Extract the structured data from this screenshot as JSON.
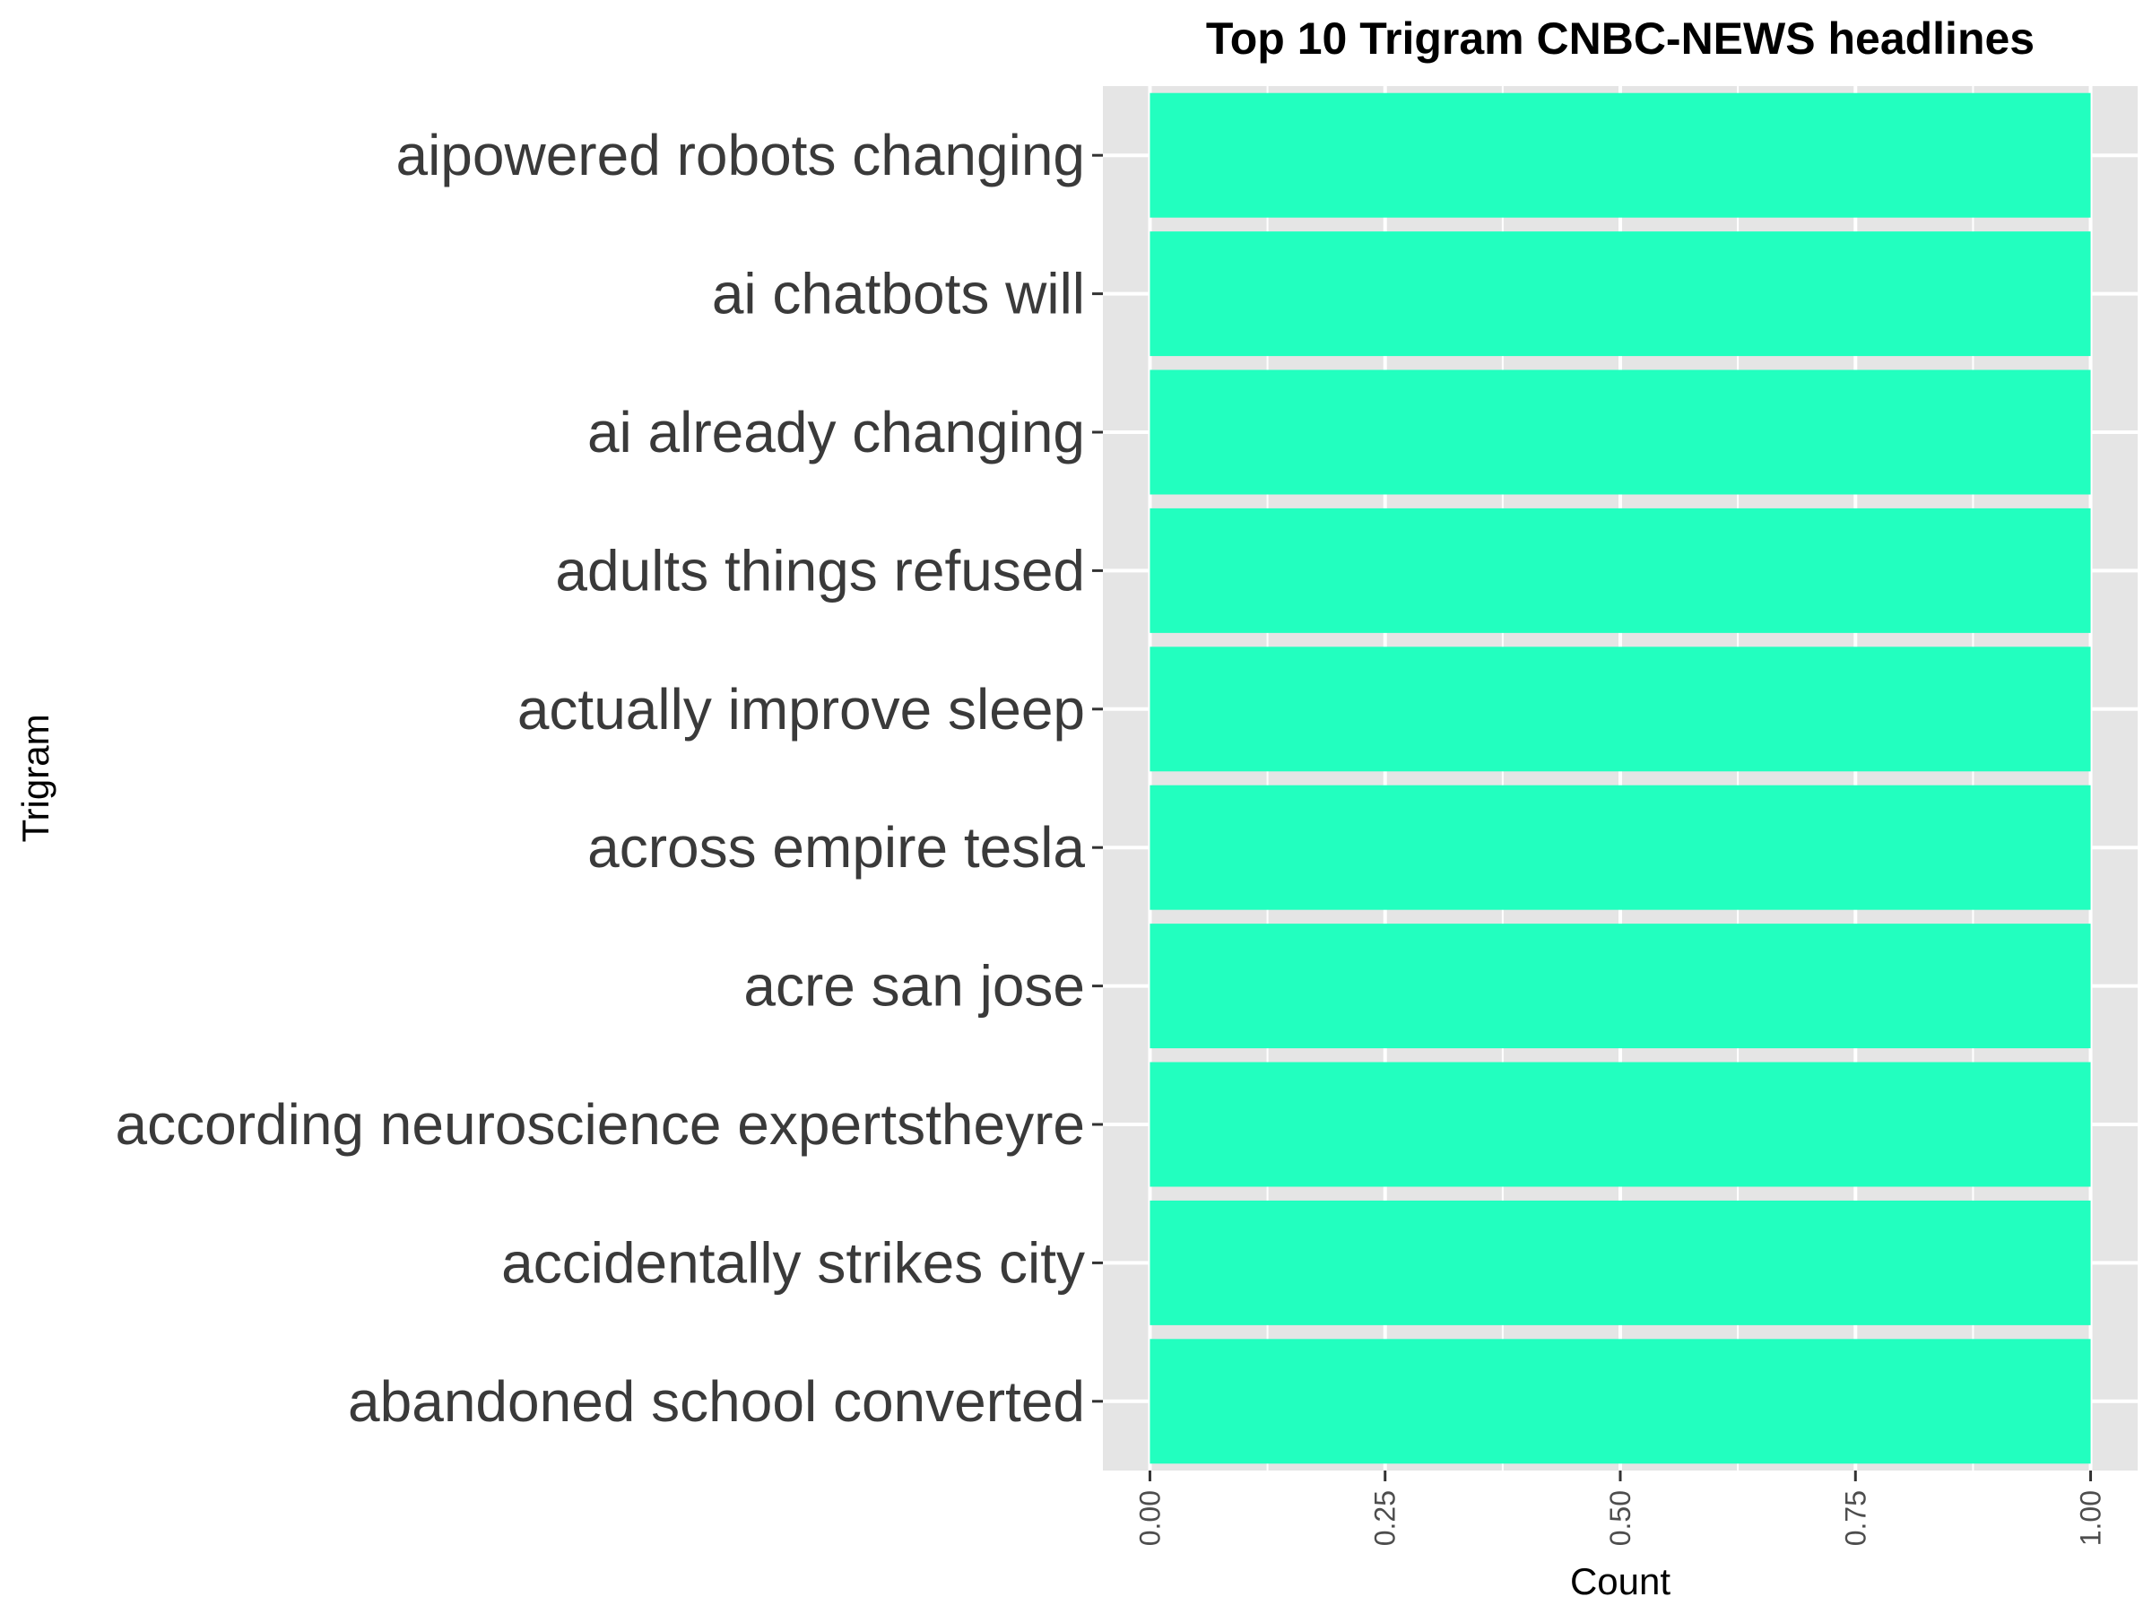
{
  "chart_data": {
    "type": "bar",
    "orientation": "horizontal",
    "title": "Top 10 Trigram CNBC-NEWS headlines",
    "xlabel": "Count",
    "ylabel": "Trigram",
    "categories": [
      "aipowered robots changing",
      "ai chatbots will",
      "ai already changing",
      "adults things refused",
      "actually improve sleep",
      "across empire tesla",
      "acre san jose",
      "according neuroscience expertstheyre",
      "accidentally strikes city",
      "abandoned school converted"
    ],
    "values": [
      1,
      1,
      1,
      1,
      1,
      1,
      1,
      1,
      1,
      1
    ],
    "xlim": [
      -0.05,
      1.05
    ],
    "xticks": [
      "0.00",
      "0.25",
      "0.50",
      "0.75",
      "1.00"
    ],
    "bar_color": "#22FFBF",
    "panel_background": "#E5E5E5",
    "grid": true,
    "legend": "none"
  }
}
